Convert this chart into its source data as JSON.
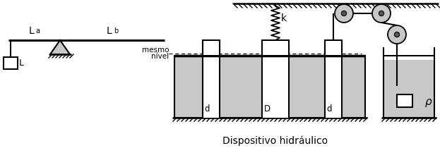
{
  "bg_color": "#ffffff",
  "gray_color": "#c8c8c8",
  "black": "#000000",
  "title": "Dispositivo hidráulico",
  "label_La": "L",
  "label_La_sub": "a",
  "label_Lb": "L",
  "label_Lb_sub": "b",
  "label_k": "k",
  "label_L": "L",
  "label_d1": "d",
  "label_D": "D",
  "label_d2": "d",
  "label_rho": "ρ",
  "label_mesmo": "mesmo",
  "label_nivel": "nível",
  "figsize": [
    6.23,
    2.17
  ],
  "dpi": 100,
  "xlim": [
    0,
    623
  ],
  "ylim": [
    0,
    217
  ]
}
